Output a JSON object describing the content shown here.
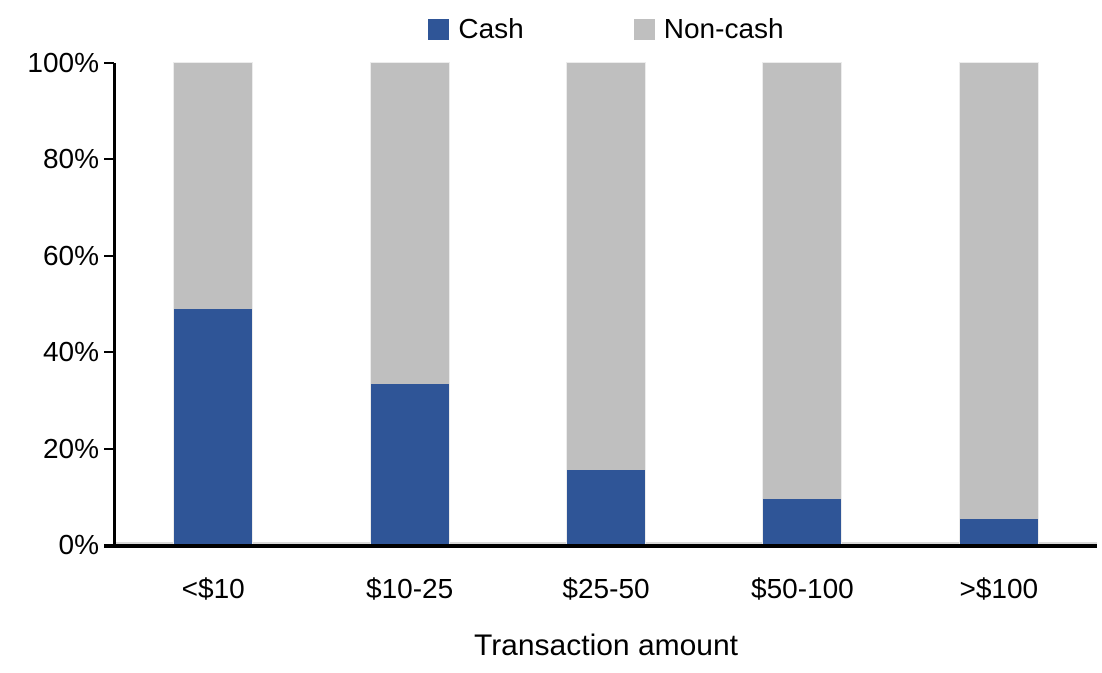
{
  "chart_data": {
    "type": "bar",
    "stacked": true,
    "percent_stacked": true,
    "title": "",
    "xlabel": "Transaction amount",
    "ylabel": "",
    "categories": [
      "<$10",
      "$10-25",
      "$25-50",
      "$50-100",
      ">$100"
    ],
    "series": [
      {
        "name": "Cash",
        "color": "#2F5597",
        "values": [
          49,
          33.5,
          15.5,
          9.5,
          5.5
        ]
      },
      {
        "name": "Non-cash",
        "color": "#BFBFBF",
        "values": [
          51,
          66.5,
          84.5,
          90.5,
          94.5
        ]
      }
    ],
    "ylim": [
      0,
      100
    ],
    "yticks": [
      {
        "value": 0,
        "label": "0%"
      },
      {
        "value": 20,
        "label": "20%"
      },
      {
        "value": 40,
        "label": "40%"
      },
      {
        "value": 60,
        "label": "60%"
      },
      {
        "value": 80,
        "label": "80%"
      },
      {
        "value": 100,
        "label": "100%"
      }
    ],
    "legend_position": "top",
    "grid": false
  }
}
